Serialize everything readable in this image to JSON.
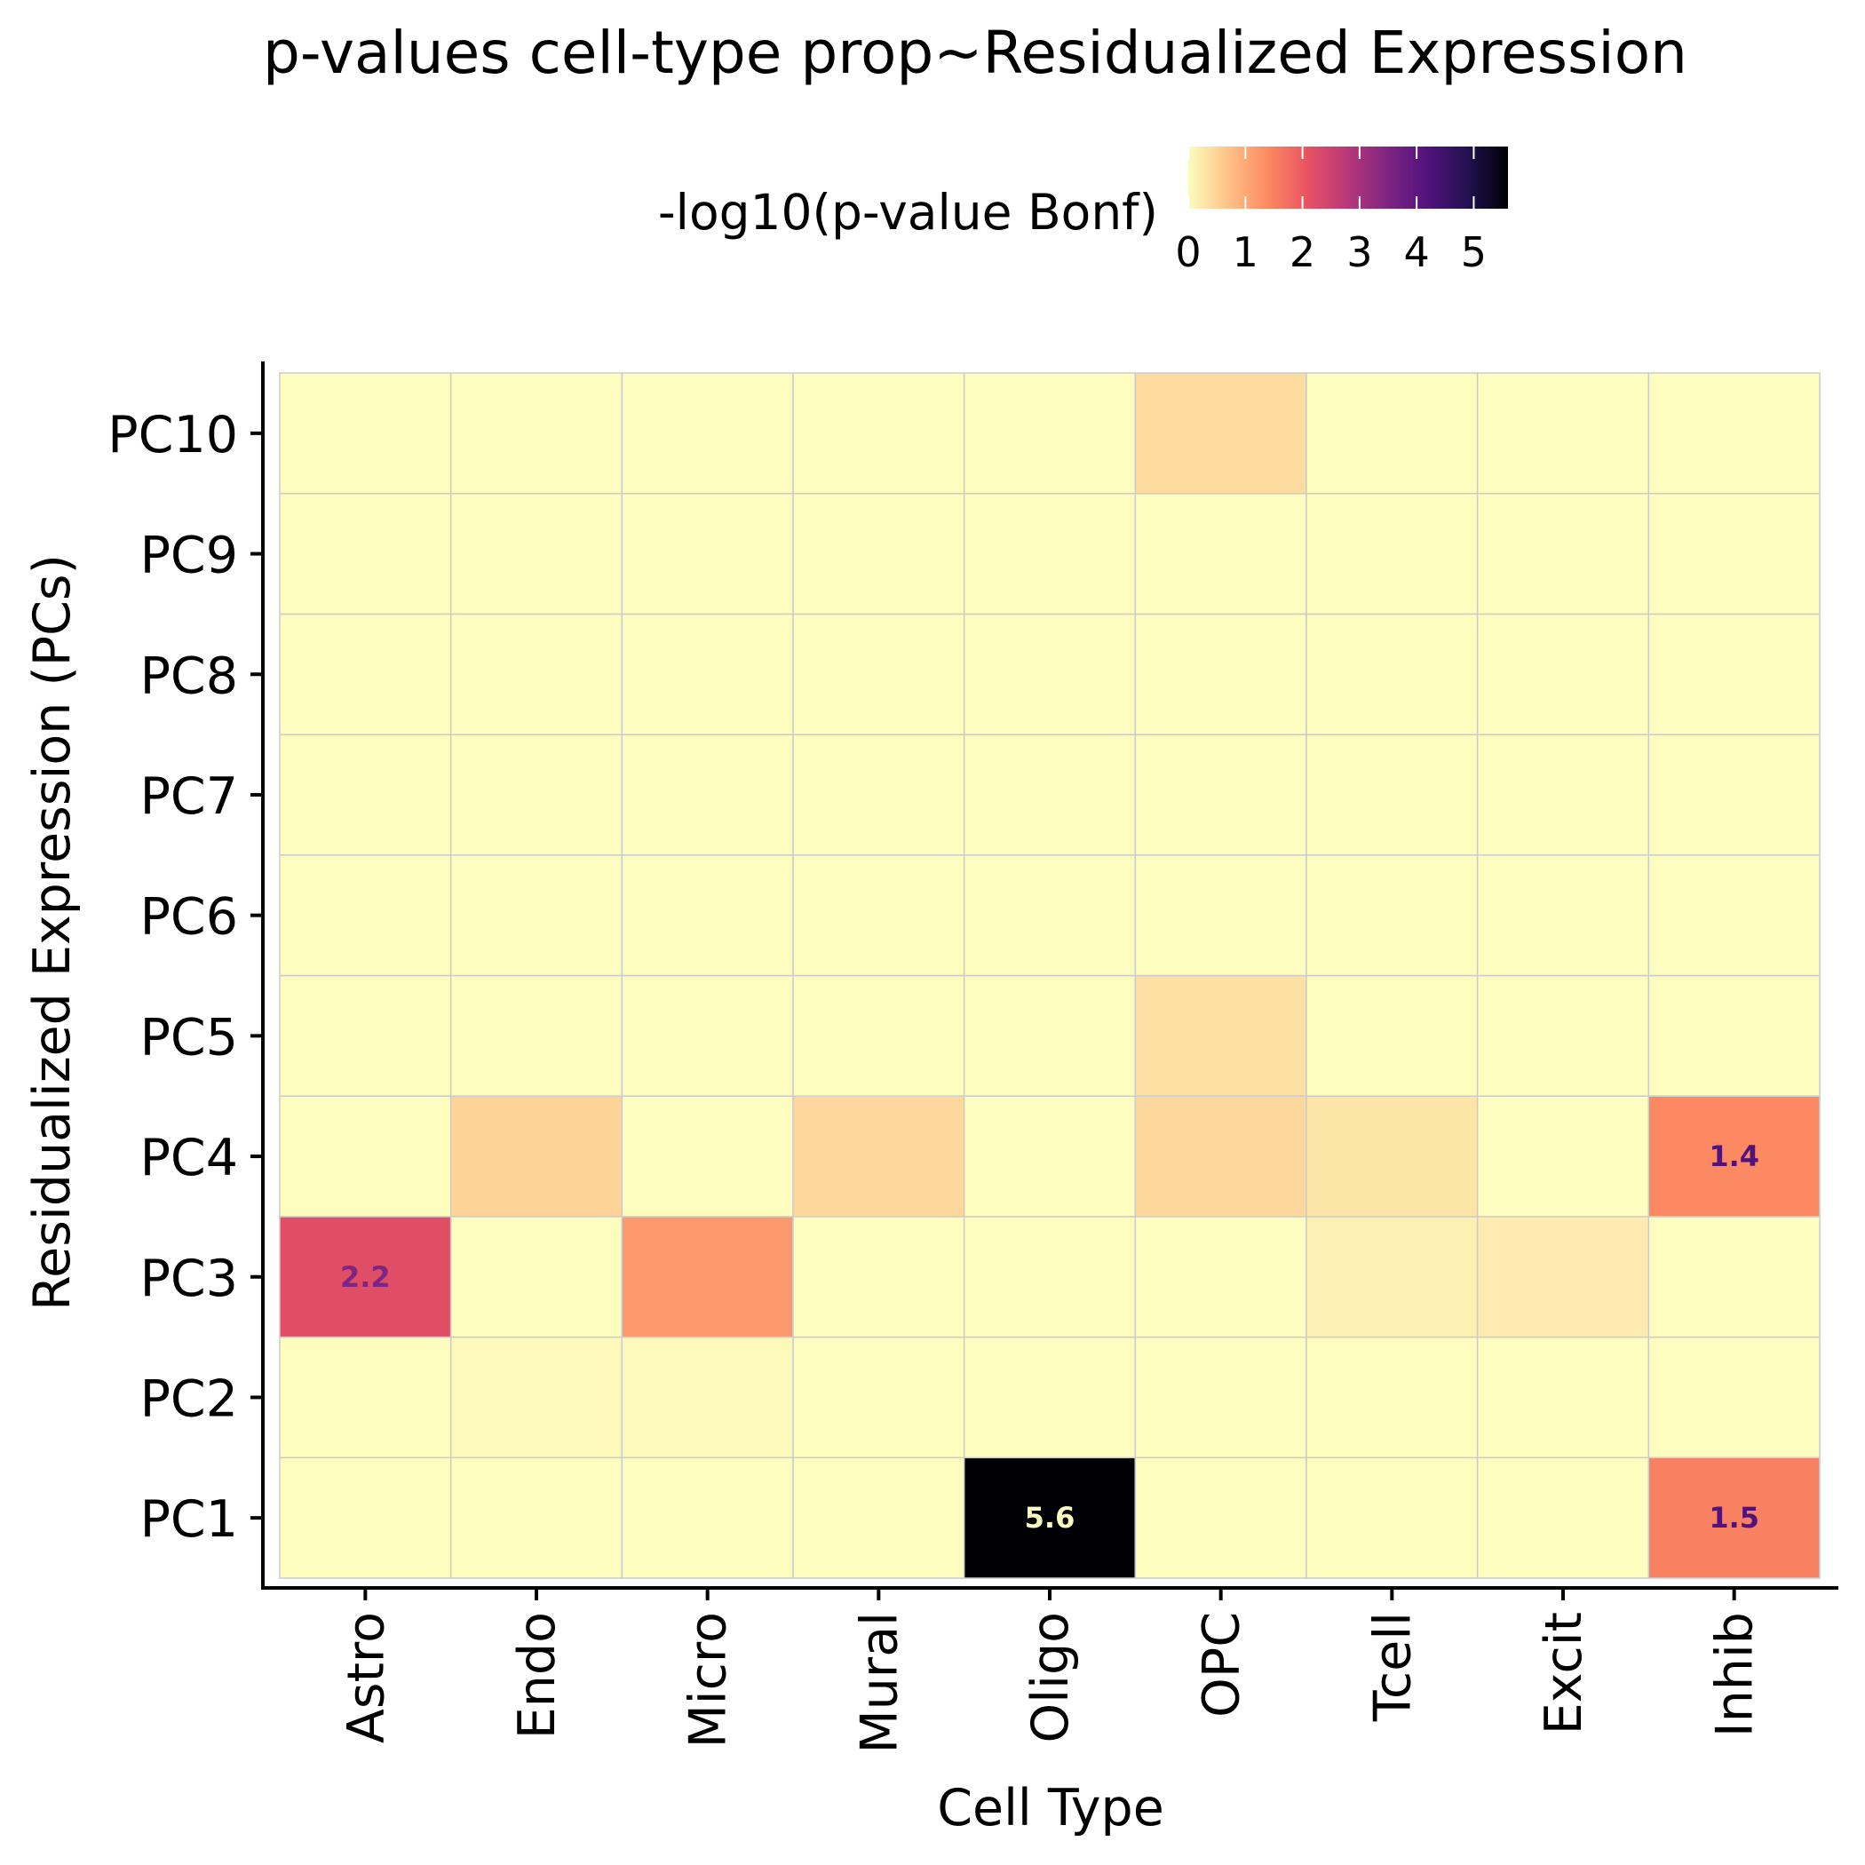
{
  "chart_data": {
    "type": "heatmap",
    "title": "p-values cell-type prop~Residualized Expression",
    "xlabel": "Cell Type",
    "ylabel": "Residualized Expression (PCs)",
    "x_categories": [
      "Astro",
      "Endo",
      "Micro",
      "Mural",
      "Oligo",
      "OPC",
      "Tcell",
      "Excit",
      "Inhib"
    ],
    "y_categories": [
      "PC1",
      "PC2",
      "PC3",
      "PC4",
      "PC5",
      "PC6",
      "PC7",
      "PC8",
      "PC9",
      "PC10"
    ],
    "values": [
      [
        0.0,
        0.0,
        0.0,
        0.0,
        5.6,
        0.0,
        0.0,
        0.0,
        1.5
      ],
      [
        0.0,
        0.05,
        0.05,
        0.0,
        0.0,
        0.0,
        0.0,
        0.0,
        0.0
      ],
      [
        2.2,
        0.0,
        1.2,
        0.0,
        0.0,
        0.0,
        0.15,
        0.2,
        0.0
      ],
      [
        0.0,
        0.5,
        0.0,
        0.45,
        0.0,
        0.45,
        0.3,
        0.0,
        1.4
      ],
      [
        0.0,
        0.0,
        0.0,
        0.0,
        0.0,
        0.35,
        0.0,
        0.0,
        0.0
      ],
      [
        0.0,
        0.0,
        0.0,
        0.0,
        0.0,
        0.0,
        0.0,
        0.0,
        0.0
      ],
      [
        0.0,
        0.0,
        0.0,
        0.0,
        0.0,
        0.0,
        0.0,
        0.0,
        0.0
      ],
      [
        0.0,
        0.0,
        0.0,
        0.0,
        0.0,
        0.0,
        0.0,
        0.0,
        0.0
      ],
      [
        0.0,
        0.0,
        0.0,
        0.0,
        0.0,
        0.0,
        0.0,
        0.0,
        0.0
      ],
      [
        0.0,
        0.0,
        0.0,
        0.0,
        0.0,
        0.4,
        0.0,
        0.0,
        0.0
      ]
    ],
    "cell_labels": [
      {
        "x": "Oligo",
        "y": "PC1",
        "text": "5.6"
      },
      {
        "x": "Inhib",
        "y": "PC1",
        "text": "1.5"
      },
      {
        "x": "Astro",
        "y": "PC3",
        "text": "2.2"
      },
      {
        "x": "Inhib",
        "y": "PC4",
        "text": "1.4"
      }
    ],
    "legend": {
      "title": "-log10(p-value Bonf)",
      "ticks": [
        "0",
        "1",
        "2",
        "3",
        "4",
        "5"
      ],
      "range": [
        0,
        5.6
      ],
      "placement": "top",
      "colormap": "magma-reversed",
      "color_stops": [
        "#fcfdbf",
        "#fec287",
        "#fc8961",
        "#e75263",
        "#b73779",
        "#7e2482",
        "#51127c",
        "#221150",
        "#000004"
      ]
    },
    "grid": true
  }
}
